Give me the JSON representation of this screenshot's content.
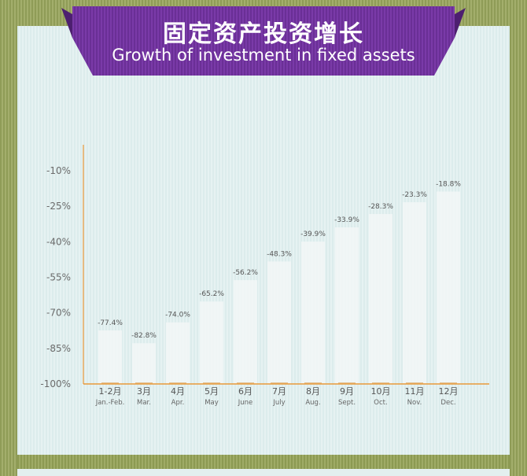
{
  "header": {
    "title_zh": "固定资产投资增长",
    "title_en": "Growth of investment in fixed assets"
  },
  "colors": {
    "banner_purple": "#6a2f96",
    "banner_purple_dark": "#4d1f70",
    "axis_orange": "#e89a3a",
    "bar_fill": "#f2f7f7",
    "background_green": "#8f9c57",
    "panel_light": "#e2eeee"
  },
  "chart_data": {
    "type": "bar",
    "title": "",
    "xlabel": "",
    "ylabel": "",
    "ylim": [
      -100,
      -10
    ],
    "yticks": [
      -10,
      -25,
      -40,
      -55,
      -70,
      -85,
      -100
    ],
    "ytick_labels": [
      "-10%",
      "-25%",
      "-40%",
      "-55%",
      "-70%",
      "-85%",
      "-100%"
    ],
    "categories": [
      "1-2月",
      "3月",
      "4月",
      "5月",
      "6月",
      "7月",
      "8月",
      "9月",
      "10月",
      "11月",
      "12月"
    ],
    "categories_en": [
      "Jan.-Feb.",
      "Mar.",
      "Apr.",
      "May",
      "June",
      "July",
      "Aug.",
      "Sept.",
      "Oct.",
      "Nov.",
      "Dec."
    ],
    "values": [
      -77.4,
      -82.8,
      -74.0,
      -65.2,
      -56.2,
      -48.3,
      -39.9,
      -33.9,
      -28.3,
      -23.3,
      -18.8
    ],
    "value_labels": [
      "-77.4%",
      "-82.8%",
      "-74.0%",
      "-65.2%",
      "-56.2%",
      "-48.3%",
      "-39.9%",
      "-33.9%",
      "-28.3%",
      "-23.3%",
      "-18.8%"
    ],
    "grid": false,
    "legend": "none"
  }
}
